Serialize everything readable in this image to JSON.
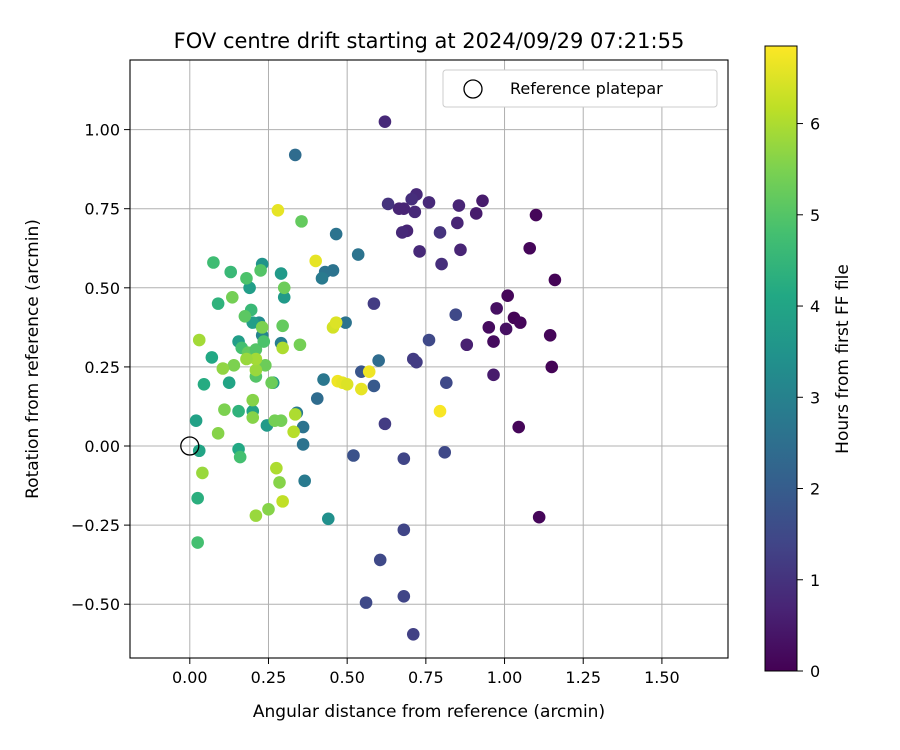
{
  "chart_data": {
    "type": "scatter",
    "title": "FOV centre drift starting at 2024/09/29 07:21:55",
    "xlabel": "Angular distance from reference (arcmin)",
    "ylabel": "Rotation from reference (arcmin)",
    "xlim": [
      -0.19,
      1.71
    ],
    "ylim": [
      -0.67,
      1.22
    ],
    "xticks": [
      0.0,
      0.25,
      0.5,
      0.75,
      1.0,
      1.25,
      1.5
    ],
    "xtick_labels": [
      "0.00",
      "0.25",
      "0.50",
      "0.75",
      "1.00",
      "1.25",
      "1.50"
    ],
    "yticks": [
      -0.5,
      -0.25,
      0.0,
      0.25,
      0.5,
      0.75,
      1.0
    ],
    "ytick_labels": [
      "−0.50",
      "−0.25",
      "0.00",
      "0.25",
      "0.50",
      "0.75",
      "1.00"
    ],
    "grid": true,
    "legend": {
      "placement": "upper-right",
      "entries": [
        "Reference platepar"
      ]
    },
    "reference_point": {
      "x": 0.0,
      "y": 0.0
    },
    "colorbar": {
      "label": "Hours from first FF file",
      "colormap": "viridis",
      "range": [
        0,
        6.85
      ],
      "ticks": [
        0,
        1,
        2,
        3,
        4,
        5,
        6
      ],
      "tick_labels": [
        "0",
        "1",
        "2",
        "3",
        "4",
        "5",
        "6"
      ]
    },
    "series": [
      {
        "values": [
          [
            1.1,
            0.73,
            0.1
          ],
          [
            1.08,
            0.625,
            0.1
          ],
          [
            1.16,
            0.525,
            0.05
          ],
          [
            1.01,
            0.475,
            0.1
          ],
          [
            1.03,
            0.405,
            0.05
          ],
          [
            0.975,
            0.435,
            0.3
          ],
          [
            1.05,
            0.39,
            0.1
          ],
          [
            0.95,
            0.375,
            0.2
          ],
          [
            1.005,
            0.37,
            0.3
          ],
          [
            0.965,
            0.33,
            0.2
          ],
          [
            1.145,
            0.35,
            0.1
          ],
          [
            1.15,
            0.25,
            0.05
          ],
          [
            0.965,
            0.225,
            0.5
          ],
          [
            1.045,
            0.06,
            0.1
          ],
          [
            1.11,
            -0.225,
            0.1
          ],
          [
            0.88,
            0.32,
            0.6
          ],
          [
            0.93,
            0.775,
            0.5
          ],
          [
            0.91,
            0.735,
            0.5
          ],
          [
            0.855,
            0.76,
            0.7
          ],
          [
            0.85,
            0.705,
            0.7
          ],
          [
            0.86,
            0.62,
            0.7
          ],
          [
            0.845,
            0.415,
            1.5
          ],
          [
            0.815,
            0.2,
            1.5
          ],
          [
            0.81,
            -0.02,
            1.5
          ],
          [
            0.8,
            0.575,
            0.9
          ],
          [
            0.795,
            0.675,
            1.0
          ],
          [
            0.76,
            0.77,
            0.8
          ],
          [
            0.72,
            0.795,
            0.8
          ],
          [
            0.705,
            0.78,
            0.9
          ],
          [
            0.715,
            0.74,
            0.8
          ],
          [
            0.68,
            0.75,
            0.7
          ],
          [
            0.665,
            0.75,
            0.7
          ],
          [
            0.69,
            0.68,
            0.7
          ],
          [
            0.675,
            0.675,
            0.8
          ],
          [
            0.73,
            0.615,
            0.8
          ],
          [
            0.63,
            0.765,
            1.0
          ],
          [
            0.62,
            1.025,
            0.8
          ],
          [
            0.76,
            0.335,
            1.5
          ],
          [
            0.71,
            0.275,
            1.2
          ],
          [
            0.72,
            0.265,
            1.2
          ],
          [
            0.585,
            0.45,
            1.2
          ],
          [
            0.62,
            0.07,
            1.2
          ],
          [
            0.68,
            -0.04,
            1.4
          ],
          [
            0.68,
            -0.265,
            1.4
          ],
          [
            0.68,
            -0.475,
            1.4
          ],
          [
            0.71,
            -0.595,
            1.3
          ],
          [
            0.605,
            -0.36,
            1.5
          ],
          [
            0.56,
            -0.495,
            1.5
          ],
          [
            0.52,
            -0.03,
            1.7
          ],
          [
            0.545,
            0.235,
            1.8
          ],
          [
            0.585,
            0.19,
            1.9
          ],
          [
            0.6,
            0.27,
            2.4
          ],
          [
            0.535,
            0.605,
            2.6
          ],
          [
            0.465,
            0.67,
            2.6
          ],
          [
            0.455,
            0.555,
            2.6
          ],
          [
            0.43,
            0.55,
            2.6
          ],
          [
            0.42,
            0.53,
            2.8
          ],
          [
            0.335,
            0.92,
            2.4
          ],
          [
            0.495,
            0.39,
            2.6
          ],
          [
            0.425,
            0.21,
            2.7
          ],
          [
            0.405,
            0.15,
            2.4
          ],
          [
            0.36,
            0.06,
            2.6
          ],
          [
            0.36,
            0.005,
            2.6
          ],
          [
            0.365,
            -0.11,
            2.8
          ],
          [
            0.44,
            -0.23,
            3.4
          ],
          [
            0.34,
            0.105,
            2.8
          ],
          [
            0.29,
            0.325,
            2.9
          ],
          [
            0.23,
            0.35,
            3.1
          ],
          [
            0.22,
            0.39,
            3.3
          ],
          [
            0.23,
            0.575,
            3.5
          ],
          [
            0.3,
            0.47,
            3.7
          ],
          [
            0.29,
            0.545,
            3.7
          ],
          [
            0.265,
            0.2,
            3.7
          ],
          [
            0.245,
            0.065,
            3.7
          ],
          [
            0.2,
            0.39,
            3.8
          ],
          [
            0.19,
            0.5,
            3.8
          ],
          [
            0.155,
            0.33,
            3.8
          ],
          [
            0.2,
            0.11,
            3.9
          ],
          [
            0.125,
            0.2,
            4.0
          ],
          [
            0.155,
            0.11,
            4.4
          ],
          [
            0.155,
            -0.01,
            4.1
          ],
          [
            0.16,
            -0.035,
            4.8
          ],
          [
            0.07,
            0.28,
            4.1
          ],
          [
            0.045,
            0.195,
            4.2
          ],
          [
            0.03,
            -0.015,
            4.0
          ],
          [
            0.02,
            0.08,
            3.9
          ],
          [
            0.025,
            -0.165,
            4.3
          ],
          [
            0.025,
            -0.305,
            4.8
          ],
          [
            0.09,
            0.45,
            4.4
          ],
          [
            0.13,
            0.55,
            4.6
          ],
          [
            0.075,
            0.58,
            4.7
          ],
          [
            0.18,
            0.53,
            4.9
          ],
          [
            0.195,
            0.43,
            4.6
          ],
          [
            0.225,
            0.555,
            5.0
          ],
          [
            0.175,
            0.41,
            5.1
          ],
          [
            0.165,
            0.31,
            4.8
          ],
          [
            0.185,
            0.295,
            5.2
          ],
          [
            0.21,
            0.305,
            5.0
          ],
          [
            0.23,
            0.375,
            5.5
          ],
          [
            0.295,
            0.38,
            5.2
          ],
          [
            0.3,
            0.5,
            5.3
          ],
          [
            0.35,
            0.32,
            5.4
          ],
          [
            0.355,
            0.71,
            5.2
          ],
          [
            0.135,
            0.47,
            5.4
          ],
          [
            0.21,
            0.22,
            5.0
          ],
          [
            0.24,
            0.255,
            5.3
          ],
          [
            0.235,
            0.33,
            4.9
          ],
          [
            0.26,
            0.2,
            5.3
          ],
          [
            0.2,
            0.145,
            5.6
          ],
          [
            0.2,
            0.09,
            5.6
          ],
          [
            0.21,
            0.24,
            5.8
          ],
          [
            0.21,
            0.275,
            5.9
          ],
          [
            0.18,
            0.275,
            5.8
          ],
          [
            0.14,
            0.255,
            5.5
          ],
          [
            0.105,
            0.245,
            5.7
          ],
          [
            0.11,
            0.115,
            5.5
          ],
          [
            0.09,
            0.04,
            5.6
          ],
          [
            0.27,
            0.08,
            5.4
          ],
          [
            0.29,
            0.08,
            5.4
          ],
          [
            0.04,
            -0.085,
            5.8
          ],
          [
            0.03,
            0.335,
            5.9
          ],
          [
            0.295,
            0.31,
            6.0
          ],
          [
            0.275,
            -0.07,
            6.0
          ],
          [
            0.285,
            -0.115,
            5.6
          ],
          [
            0.25,
            -0.2,
            5.6
          ],
          [
            0.21,
            -0.22,
            5.8
          ],
          [
            0.295,
            -0.175,
            6.2
          ],
          [
            0.335,
            0.1,
            6.0
          ],
          [
            0.33,
            0.045,
            6.1
          ],
          [
            0.28,
            0.745,
            6.6
          ],
          [
            0.4,
            0.585,
            6.6
          ],
          [
            0.455,
            0.375,
            6.4
          ],
          [
            0.465,
            0.39,
            6.5
          ],
          [
            0.47,
            0.205,
            6.7
          ],
          [
            0.485,
            0.2,
            6.6
          ],
          [
            0.5,
            0.195,
            6.5
          ],
          [
            0.545,
            0.18,
            6.6
          ],
          [
            0.57,
            0.235,
            6.7
          ],
          [
            0.795,
            0.11,
            6.8
          ]
        ]
      }
    ]
  }
}
